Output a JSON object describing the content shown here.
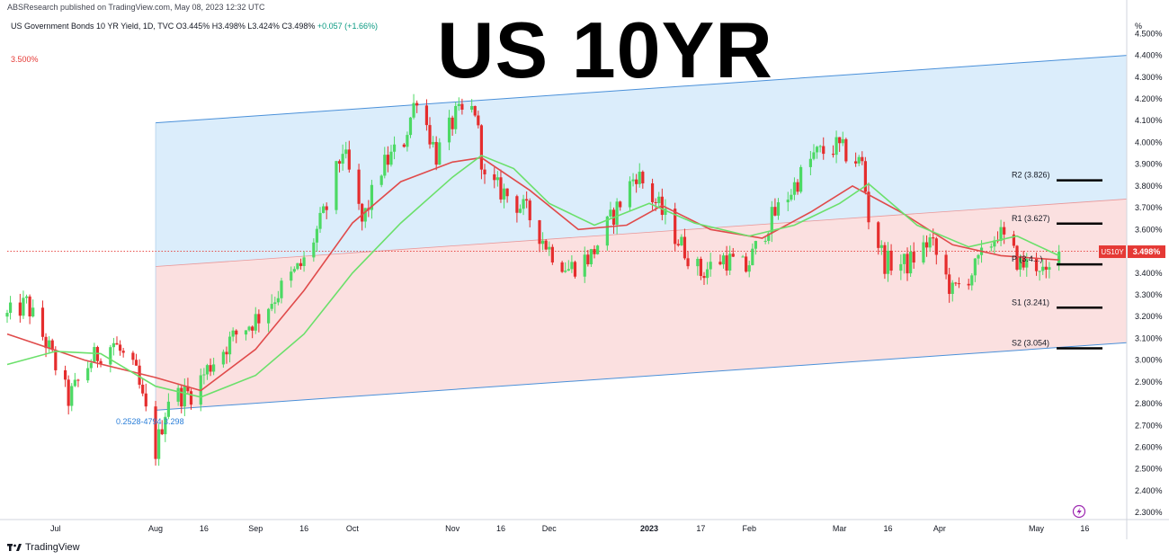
{
  "header": {
    "published": "ABSResearch published on TradingView.com, May 08, 2023 12:32 UTC"
  },
  "symbol": {
    "name": "US Government Bonds 10 YR Yield, 1D, TVC",
    "ohlc": "O3.445% H3.498% L3.424% C3.498%",
    "change": "+0.057 (+1.66%)"
  },
  "title": "US 10YR",
  "ref_level_label": "3.500%",
  "footer": {
    "brand": "TradingView"
  },
  "colors": {
    "up": "#4cd964",
    "down": "#e52d2d",
    "ma_fast": "#e04b4b",
    "ma_slow": "#6be06b",
    "channel_line": "#4a90d9",
    "channel_upper_fill": "#d9ecfb",
    "channel_lower_fill": "#fbdede",
    "price_tag": "#e53935"
  },
  "chart_data": {
    "type": "candlestick",
    "ylim": [
      2.28,
      4.58
    ],
    "y_unit": "%",
    "y_ticks": [
      "4.500%",
      "4.400%",
      "4.300%",
      "4.200%",
      "4.100%",
      "4.000%",
      "3.900%",
      "3.800%",
      "3.700%",
      "3.600%",
      "3.500%",
      "3.400%",
      "3.300%",
      "3.200%",
      "3.100%",
      "3.000%",
      "2.900%",
      "2.800%",
      "2.700%",
      "2.600%",
      "2.500%",
      "2.400%",
      "2.300%"
    ],
    "y_tick_values": [
      4.5,
      4.4,
      4.3,
      4.2,
      4.1,
      4.0,
      3.9,
      3.8,
      3.7,
      3.6,
      3.5,
      3.4,
      3.3,
      3.2,
      3.1,
      3.0,
      2.9,
      2.8,
      2.7,
      2.6,
      2.5,
      2.4,
      2.3
    ],
    "x_ticks": [
      {
        "label": "Jul",
        "date": "2022-07-01",
        "bold": false
      },
      {
        "label": "Aug",
        "date": "2022-08-01",
        "bold": false
      },
      {
        "label": "16",
        "date": "2022-08-16",
        "bold": false
      },
      {
        "label": "Sep",
        "date": "2022-09-01",
        "bold": false
      },
      {
        "label": "16",
        "date": "2022-09-16",
        "bold": false
      },
      {
        "label": "Oct",
        "date": "2022-10-01",
        "bold": false
      },
      {
        "label": "Nov",
        "date": "2022-11-01",
        "bold": false
      },
      {
        "label": "16",
        "date": "2022-11-16",
        "bold": false
      },
      {
        "label": "Dec",
        "date": "2022-12-01",
        "bold": false
      },
      {
        "label": "2023",
        "date": "2023-01-01",
        "bold": true
      },
      {
        "label": "17",
        "date": "2023-01-17",
        "bold": false
      },
      {
        "label": "Feb",
        "date": "2023-02-01",
        "bold": false
      },
      {
        "label": "Mar",
        "date": "2023-03-01",
        "bold": false
      },
      {
        "label": "16",
        "date": "2023-03-16",
        "bold": false
      },
      {
        "label": "Apr",
        "date": "2023-04-01",
        "bold": false
      },
      {
        "label": "May",
        "date": "2023-05-01",
        "bold": false
      },
      {
        "label": "16",
        "date": "2023-05-16",
        "bold": false
      }
    ],
    "x_range": [
      "2022-06-16",
      "2023-05-29"
    ],
    "close_path": [
      {
        "date": "2022-06-16",
        "close": 3.2
      },
      {
        "date": "2022-06-22",
        "close": 3.26
      },
      {
        "date": "2022-06-29",
        "close": 3.05
      },
      {
        "date": "2022-07-05",
        "close": 2.82
      },
      {
        "date": "2022-07-12",
        "close": 3.0
      },
      {
        "date": "2022-07-19",
        "close": 3.08
      },
      {
        "date": "2022-07-26",
        "close": 2.93
      },
      {
        "date": "2022-08-01",
        "close": 2.58
      },
      {
        "date": "2022-08-05",
        "close": 2.83
      },
      {
        "date": "2022-08-12",
        "close": 2.85
      },
      {
        "date": "2022-08-19",
        "close": 3.0
      },
      {
        "date": "2022-08-26",
        "close": 3.12
      },
      {
        "date": "2022-09-02",
        "close": 3.2
      },
      {
        "date": "2022-09-09",
        "close": 3.33
      },
      {
        "date": "2022-09-16",
        "close": 3.45
      },
      {
        "date": "2022-09-23",
        "close": 3.7
      },
      {
        "date": "2022-09-28",
        "close": 3.97
      },
      {
        "date": "2022-10-04",
        "close": 3.63
      },
      {
        "date": "2022-10-10",
        "close": 3.88
      },
      {
        "date": "2022-10-17",
        "close": 4.01
      },
      {
        "date": "2022-10-21",
        "close": 4.22
      },
      {
        "date": "2022-10-27",
        "close": 3.94
      },
      {
        "date": "2022-11-02",
        "close": 4.12
      },
      {
        "date": "2022-11-08",
        "close": 4.15
      },
      {
        "date": "2022-11-11",
        "close": 3.82
      },
      {
        "date": "2022-11-17",
        "close": 3.77
      },
      {
        "date": "2022-11-24",
        "close": 3.68
      },
      {
        "date": "2022-12-01",
        "close": 3.51
      },
      {
        "date": "2022-12-07",
        "close": 3.42
      },
      {
        "date": "2022-12-14",
        "close": 3.48
      },
      {
        "date": "2022-12-21",
        "close": 3.67
      },
      {
        "date": "2022-12-28",
        "close": 3.86
      },
      {
        "date": "2023-01-04",
        "close": 3.7
      },
      {
        "date": "2023-01-10",
        "close": 3.55
      },
      {
        "date": "2023-01-17",
        "close": 3.4
      },
      {
        "date": "2023-01-24",
        "close": 3.47
      },
      {
        "date": "2023-01-31",
        "close": 3.42
      },
      {
        "date": "2023-02-07",
        "close": 3.63
      },
      {
        "date": "2023-02-14",
        "close": 3.78
      },
      {
        "date": "2023-02-21",
        "close": 3.94
      },
      {
        "date": "2023-02-28",
        "close": 3.98
      },
      {
        "date": "2023-03-03",
        "close": 3.95
      },
      {
        "date": "2023-03-08",
        "close": 3.9
      },
      {
        "date": "2023-03-10",
        "close": 3.66
      },
      {
        "date": "2023-03-15",
        "close": 3.45
      },
      {
        "date": "2023-03-22",
        "close": 3.44
      },
      {
        "date": "2023-03-29",
        "close": 3.55
      },
      {
        "date": "2023-04-05",
        "close": 3.31
      },
      {
        "date": "2023-04-12",
        "close": 3.42
      },
      {
        "date": "2023-04-19",
        "close": 3.59
      },
      {
        "date": "2023-04-26",
        "close": 3.44
      },
      {
        "date": "2023-05-02",
        "close": 3.44
      },
      {
        "date": "2023-05-04",
        "close": 3.37
      },
      {
        "date": "2023-05-08",
        "close": 3.498
      }
    ],
    "ma_fast": [
      {
        "date": "2022-06-16",
        "value": 3.12
      },
      {
        "date": "2022-07-10",
        "value": 3.0
      },
      {
        "date": "2022-08-01",
        "value": 2.92
      },
      {
        "date": "2022-08-15",
        "value": 2.86
      },
      {
        "date": "2022-09-01",
        "value": 3.05
      },
      {
        "date": "2022-09-16",
        "value": 3.32
      },
      {
        "date": "2022-10-01",
        "value": 3.63
      },
      {
        "date": "2022-10-16",
        "value": 3.82
      },
      {
        "date": "2022-11-01",
        "value": 3.91
      },
      {
        "date": "2022-11-10",
        "value": 3.93
      },
      {
        "date": "2022-11-25",
        "value": 3.78
      },
      {
        "date": "2022-12-10",
        "value": 3.6
      },
      {
        "date": "2022-12-25",
        "value": 3.62
      },
      {
        "date": "2023-01-05",
        "value": 3.71
      },
      {
        "date": "2023-01-20",
        "value": 3.6
      },
      {
        "date": "2023-02-05",
        "value": 3.56
      },
      {
        "date": "2023-02-20",
        "value": 3.68
      },
      {
        "date": "2023-03-05",
        "value": 3.8
      },
      {
        "date": "2023-03-20",
        "value": 3.68
      },
      {
        "date": "2023-04-05",
        "value": 3.53
      },
      {
        "date": "2023-04-20",
        "value": 3.48
      },
      {
        "date": "2023-05-08",
        "value": 3.46
      }
    ],
    "ma_slow": [
      {
        "date": "2022-06-16",
        "value": 2.98
      },
      {
        "date": "2022-07-01",
        "value": 3.04
      },
      {
        "date": "2022-07-15",
        "value": 3.03
      },
      {
        "date": "2022-08-01",
        "value": 2.88
      },
      {
        "date": "2022-08-15",
        "value": 2.83
      },
      {
        "date": "2022-09-01",
        "value": 2.93
      },
      {
        "date": "2022-09-16",
        "value": 3.12
      },
      {
        "date": "2022-10-01",
        "value": 3.4
      },
      {
        "date": "2022-10-16",
        "value": 3.63
      },
      {
        "date": "2022-11-01",
        "value": 3.84
      },
      {
        "date": "2022-11-10",
        "value": 3.94
      },
      {
        "date": "2022-11-20",
        "value": 3.88
      },
      {
        "date": "2022-12-01",
        "value": 3.72
      },
      {
        "date": "2022-12-15",
        "value": 3.62
      },
      {
        "date": "2023-01-01",
        "value": 3.72
      },
      {
        "date": "2023-01-15",
        "value": 3.63
      },
      {
        "date": "2023-02-01",
        "value": 3.57
      },
      {
        "date": "2023-02-15",
        "value": 3.62
      },
      {
        "date": "2023-03-01",
        "value": 3.72
      },
      {
        "date": "2023-03-10",
        "value": 3.81
      },
      {
        "date": "2023-03-25",
        "value": 3.62
      },
      {
        "date": "2023-04-10",
        "value": 3.52
      },
      {
        "date": "2023-04-25",
        "value": 3.57
      },
      {
        "date": "2023-05-08",
        "value": 3.48
      }
    ],
    "channel": {
      "start_date": "2022-08-01",
      "end_date": "2023-05-29",
      "upper": [
        4.09,
        4.4
      ],
      "middle": [
        3.43,
        3.74
      ],
      "lower": [
        2.77,
        3.08
      ]
    },
    "pivots": [
      {
        "label": "R2 (3.826)",
        "value": 3.826
      },
      {
        "label": "R1 (3.627)",
        "value": 3.627
      },
      {
        "label": "P (3.4...)",
        "value": 3.44
      },
      {
        "label": "S1 (3.241)",
        "value": 3.241
      },
      {
        "label": "S2 (3.054)",
        "value": 3.054
      }
    ],
    "ref_line": 3.5,
    "last_price": {
      "label": "US10Y",
      "value": "3.498%",
      "y": 3.498
    },
    "fib_label": "0.2528-4794 3.298"
  }
}
